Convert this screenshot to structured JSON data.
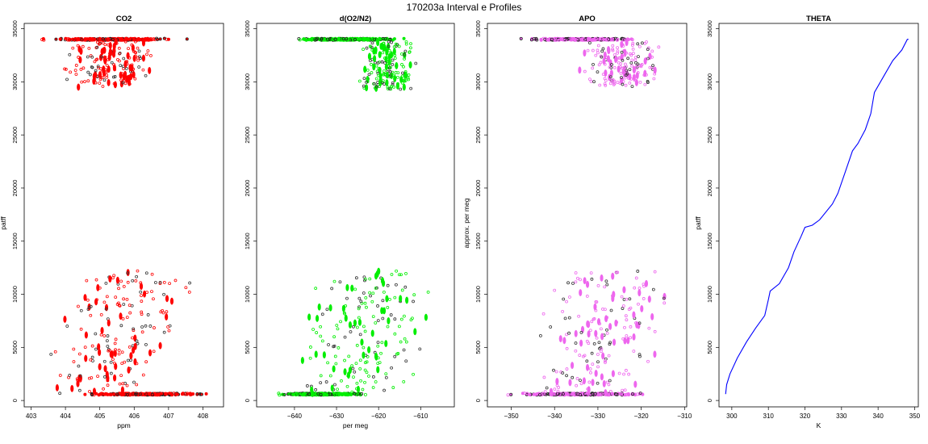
{
  "figure": {
    "title": "170203a   Interval e Profiles"
  },
  "chart_data": [
    {
      "type": "scatter",
      "title": "CO2",
      "xlabel": "ppm",
      "ylabel": "patff",
      "xlim": [
        402.8,
        408.6
      ],
      "ylim": [
        -600,
        35500
      ],
      "xticks": [
        403,
        404,
        405,
        406,
        407,
        408
      ],
      "yticks": [
        0,
        5000,
        10000,
        15000,
        20000,
        25000,
        30000,
        35000
      ],
      "color": "#ff0000",
      "grid": false,
      "series": [
        {
          "upper_band": {
            "y": 34000,
            "x_range": [
              403.1,
              407.6
            ]
          },
          "upper_cluster": {
            "y_range": [
              29500,
              33800
            ],
            "x_range": [
              403.6,
              407.0
            ]
          },
          "lower_cluster": {
            "y_range": [
              600,
              12200
            ],
            "x_range": [
              403.3,
              407.8
            ]
          },
          "lower_band": {
            "y": 600,
            "x_range": [
              404.0,
              408.4
            ]
          }
        }
      ]
    },
    {
      "type": "scatter",
      "title": "d(O2/N2)",
      "xlabel": "per meg",
      "ylabel": "",
      "xlim": [
        -649,
        -602
      ],
      "ylim": [
        -600,
        35500
      ],
      "xticks": [
        -640,
        -630,
        -620,
        -610
      ],
      "yticks": [
        0,
        5000,
        10000,
        15000,
        20000,
        25000,
        30000,
        35000
      ],
      "color": "#00ee00",
      "grid": false,
      "series": [
        {
          "upper_band": {
            "y": 34000,
            "x_range": [
              -643,
              -612
            ]
          },
          "upper_cluster": {
            "y_range": [
              29300,
              33800
            ],
            "x_range": [
              -627,
              -609
            ]
          },
          "lower_cluster": {
            "y_range": [
              600,
              12200
            ],
            "x_range": [
              -643,
              -604
            ]
          },
          "lower_band": {
            "y": 600,
            "x_range": [
              -646,
              -621
            ]
          }
        }
      ]
    },
    {
      "type": "scatter",
      "title": "APO",
      "xlabel": "",
      "ylabel": "approx. per meg",
      "xlim": [
        -355.5,
        -309.5
      ],
      "ylim": [
        -600,
        35500
      ],
      "xticks": [
        -350,
        -340,
        -330,
        -320,
        -310
      ],
      "yticks": [
        0,
        5000,
        10000,
        15000,
        20000,
        25000,
        30000,
        35000
      ],
      "color": "#ee66ee",
      "grid": false,
      "series": [
        {
          "upper_band": {
            "y": 34000,
            "x_range": [
              -350,
              -318
            ]
          },
          "upper_cluster": {
            "y_range": [
              29500,
              33800
            ],
            "x_range": [
              -337,
              -312
            ]
          },
          "lower_cluster": {
            "y_range": [
              600,
              12200
            ],
            "x_range": [
              -348,
              -311
            ]
          },
          "lower_band": {
            "y": 600,
            "x_range": [
              -352,
              -316
            ]
          }
        }
      ]
    },
    {
      "type": "line",
      "title": "THETA",
      "xlabel": "K",
      "ylabel": "patff",
      "xlim": [
        296.5,
        351
      ],
      "ylim": [
        -600,
        35500
      ],
      "xticks": [
        300,
        310,
        320,
        330,
        340,
        350
      ],
      "yticks": [
        0,
        5000,
        10000,
        15000,
        20000,
        25000,
        30000,
        35000
      ],
      "color": "#0000ff",
      "grid": false,
      "series": [
        {
          "x": [
            298.3,
            298.6,
            299.5,
            301.5,
            304.0,
            306.5,
            309.0,
            310.0,
            310.5,
            313.0,
            315.5,
            317.0,
            319.0,
            320.0,
            322.0,
            324.0,
            327.5,
            329.0,
            331.0,
            333.0,
            334.5,
            336.5,
            338.0,
            339.0,
            341.5,
            344.0,
            346.5,
            348.0,
            348.3
          ],
          "y": [
            600,
            1500,
            2500,
            4000,
            5500,
            6800,
            8000,
            9500,
            10300,
            11000,
            12500,
            14000,
            15500,
            16300,
            16500,
            17000,
            18500,
            19500,
            21500,
            23500,
            24200,
            25500,
            27000,
            29000,
            30500,
            32000,
            33000,
            34000,
            34000
          ]
        }
      ]
    }
  ]
}
